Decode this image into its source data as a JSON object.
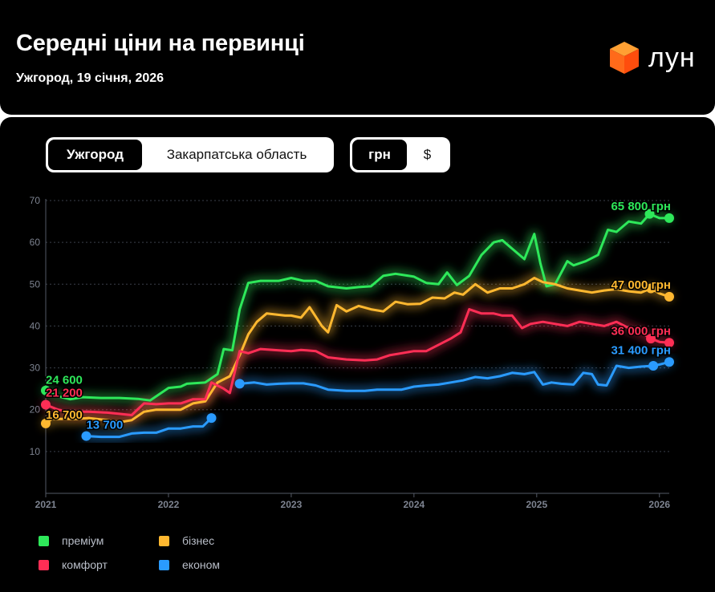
{
  "header": {
    "title": "Середні ціни на первинці",
    "subtitle": "Ужгород, 19 січня, 2026",
    "logo_text": "лун"
  },
  "controls": {
    "region_tabs": [
      {
        "label": "Ужгород",
        "active": true
      },
      {
        "label": "Закарпатська область",
        "active": false
      }
    ],
    "currency_tabs": [
      {
        "label": "грн",
        "active": true
      },
      {
        "label": "$",
        "active": false
      }
    ]
  },
  "colors": {
    "premium": "#2ee85a",
    "business": "#ffb830",
    "comfort": "#ff2e55",
    "econom": "#2a9bff",
    "grid": "#3a3f4a",
    "axis_text": "#7d8390"
  },
  "chart_data": {
    "type": "line",
    "title": "Середні ціни на первинці",
    "xlabel": "",
    "ylabel": "",
    "xlim": [
      2021.0,
      2026.08
    ],
    "ylim": [
      0,
      70
    ],
    "y_ticks": [
      10,
      20,
      30,
      40,
      50,
      60,
      70
    ],
    "x_ticks": [
      {
        "value": 2021.0,
        "label": "2021"
      },
      {
        "value": 2022.0,
        "label": "2022"
      },
      {
        "value": 2023.0,
        "label": "2023"
      },
      {
        "value": 2024.0,
        "label": "2024"
      },
      {
        "value": 2025.0,
        "label": "2025"
      },
      {
        "value": 2026.0,
        "label": "2026"
      }
    ],
    "grid": "horizontal dotted",
    "legend": "bottom-left",
    "series": [
      {
        "key": "premium",
        "name": "преміум",
        "start_label": "24 600",
        "end_label": "65 800 грн",
        "points": [
          [
            2021.0,
            24.6
          ],
          [
            2021.1,
            23.2
          ],
          [
            2021.2,
            22.5
          ],
          [
            2021.3,
            23.0
          ],
          [
            2021.45,
            22.8
          ],
          [
            2021.6,
            22.8
          ],
          [
            2021.75,
            22.6
          ],
          [
            2021.85,
            22.2
          ],
          [
            2022.0,
            25.2
          ],
          [
            2022.1,
            25.5
          ],
          [
            2022.15,
            26.2
          ],
          [
            2022.3,
            26.5
          ],
          [
            2022.4,
            28.5
          ],
          [
            2022.45,
            34.5
          ],
          [
            2022.52,
            34.2
          ],
          [
            2022.58,
            44.0
          ],
          [
            2022.65,
            50.3
          ],
          [
            2022.75,
            50.8
          ],
          [
            2022.9,
            50.8
          ],
          [
            2023.0,
            51.5
          ],
          [
            2023.1,
            50.8
          ],
          [
            2023.2,
            50.8
          ],
          [
            2023.3,
            49.5
          ],
          [
            2023.45,
            49.0
          ],
          [
            2023.55,
            49.3
          ],
          [
            2023.65,
            49.5
          ],
          [
            2023.75,
            52.0
          ],
          [
            2023.85,
            52.5
          ],
          [
            2024.0,
            51.8
          ],
          [
            2024.1,
            50.3
          ],
          [
            2024.2,
            50.0
          ],
          [
            2024.27,
            52.8
          ],
          [
            2024.35,
            49.8
          ],
          [
            2024.45,
            52.0
          ],
          [
            2024.55,
            57.0
          ],
          [
            2024.65,
            60.0
          ],
          [
            2024.72,
            60.5
          ],
          [
            2024.8,
            58.5
          ],
          [
            2024.9,
            56.0
          ],
          [
            2024.98,
            62.0
          ],
          [
            2025.03,
            55.0
          ],
          [
            2025.08,
            49.5
          ],
          [
            2025.15,
            50.0
          ],
          [
            2025.25,
            55.5
          ],
          [
            2025.3,
            54.5
          ],
          [
            2025.4,
            55.5
          ],
          [
            2025.5,
            57.0
          ],
          [
            2025.58,
            63.0
          ],
          [
            2025.65,
            62.5
          ],
          [
            2025.75,
            65.0
          ],
          [
            2025.85,
            64.5
          ],
          [
            2025.92,
            66.8
          ],
          [
            2026.0,
            65.8
          ],
          [
            2026.08,
            65.8
          ]
        ]
      },
      {
        "key": "business",
        "name": "бізнес",
        "start_label": "16 700",
        "end_label": "47 000 грн",
        "points": [
          [
            2021.0,
            16.7
          ],
          [
            2021.05,
            17.8
          ],
          [
            2021.15,
            17.8
          ],
          [
            2021.25,
            17.8
          ],
          [
            2021.35,
            18.0
          ],
          [
            2021.5,
            17.5
          ],
          [
            2021.6,
            17.0
          ],
          [
            2021.7,
            17.5
          ],
          [
            2021.8,
            19.5
          ],
          [
            2021.9,
            20.0
          ],
          [
            2022.0,
            20.0
          ],
          [
            2022.1,
            20.0
          ],
          [
            2022.2,
            21.5
          ],
          [
            2022.3,
            22.0
          ],
          [
            2022.4,
            26.5
          ],
          [
            2022.5,
            28.0
          ],
          [
            2022.58,
            33.0
          ],
          [
            2022.65,
            38.0
          ],
          [
            2022.72,
            41.0
          ],
          [
            2022.8,
            43.0
          ],
          [
            2022.95,
            42.5
          ],
          [
            2023.0,
            42.5
          ],
          [
            2023.08,
            42.0
          ],
          [
            2023.15,
            44.5
          ],
          [
            2023.25,
            40.0
          ],
          [
            2023.3,
            38.5
          ],
          [
            2023.37,
            45.0
          ],
          [
            2023.45,
            43.5
          ],
          [
            2023.55,
            44.8
          ],
          [
            2023.65,
            44.0
          ],
          [
            2023.75,
            43.5
          ],
          [
            2023.85,
            45.8
          ],
          [
            2023.95,
            45.2
          ],
          [
            2024.05,
            45.3
          ],
          [
            2024.15,
            46.8
          ],
          [
            2024.25,
            46.6
          ],
          [
            2024.33,
            48.0
          ],
          [
            2024.4,
            47.5
          ],
          [
            2024.5,
            50.0
          ],
          [
            2024.6,
            48.0
          ],
          [
            2024.7,
            49.0
          ],
          [
            2024.8,
            49.0
          ],
          [
            2024.9,
            50.0
          ],
          [
            2024.98,
            51.5
          ],
          [
            2025.05,
            50.5
          ],
          [
            2025.15,
            50.0
          ],
          [
            2025.25,
            49.0
          ],
          [
            2025.35,
            48.5
          ],
          [
            2025.45,
            48.0
          ],
          [
            2025.55,
            48.5
          ],
          [
            2025.65,
            48.8
          ],
          [
            2025.75,
            48.3
          ],
          [
            2025.85,
            48.0
          ],
          [
            2025.93,
            49.0
          ],
          [
            2026.0,
            47.8
          ],
          [
            2026.08,
            47.0
          ]
        ]
      },
      {
        "key": "comfort",
        "name": "комфорт",
        "start_label": "21 200",
        "end_label": "36 000 грн",
        "points": [
          [
            2021.0,
            21.2
          ],
          [
            2021.1,
            20.0
          ],
          [
            2021.2,
            19.5
          ],
          [
            2021.35,
            19.5
          ],
          [
            2021.5,
            19.3
          ],
          [
            2021.6,
            19.0
          ],
          [
            2021.7,
            18.7
          ],
          [
            2021.8,
            21.5
          ],
          [
            2021.9,
            21.3
          ],
          [
            2022.0,
            21.5
          ],
          [
            2022.1,
            21.5
          ],
          [
            2022.2,
            22.5
          ],
          [
            2022.3,
            22.5
          ],
          [
            2022.35,
            26.5
          ],
          [
            2022.45,
            25.0
          ],
          [
            2022.5,
            24.0
          ],
          [
            2022.58,
            34.0
          ],
          [
            2022.65,
            33.5
          ],
          [
            2022.75,
            34.5
          ],
          [
            2022.9,
            34.2
          ],
          [
            2023.0,
            34.0
          ],
          [
            2023.08,
            34.3
          ],
          [
            2023.2,
            34.0
          ],
          [
            2023.3,
            32.5
          ],
          [
            2023.45,
            32.0
          ],
          [
            2023.6,
            31.8
          ],
          [
            2023.7,
            32.0
          ],
          [
            2023.8,
            33.0
          ],
          [
            2023.9,
            33.5
          ],
          [
            2024.0,
            34.0
          ],
          [
            2024.1,
            34.0
          ],
          [
            2024.2,
            35.5
          ],
          [
            2024.3,
            37.0
          ],
          [
            2024.38,
            38.5
          ],
          [
            2024.45,
            44.0
          ],
          [
            2024.55,
            43.0
          ],
          [
            2024.65,
            43.0
          ],
          [
            2024.72,
            42.5
          ],
          [
            2024.8,
            42.5
          ],
          [
            2024.88,
            39.5
          ],
          [
            2024.95,
            40.5
          ],
          [
            2025.05,
            41.0
          ],
          [
            2025.15,
            40.5
          ],
          [
            2025.25,
            40.0
          ],
          [
            2025.35,
            41.0
          ],
          [
            2025.45,
            40.5
          ],
          [
            2025.55,
            40.0
          ],
          [
            2025.65,
            41.0
          ],
          [
            2025.75,
            39.5
          ],
          [
            2025.85,
            38.5
          ],
          [
            2025.93,
            37.0
          ],
          [
            2026.0,
            36.2
          ],
          [
            2026.08,
            36.0
          ]
        ]
      },
      {
        "key": "econom",
        "name": "економ",
        "start_label": "13 700",
        "end_label": "31 400 грн",
        "segments": [
          [
            [
              2021.33,
              13.7
            ],
            [
              2021.45,
              13.5
            ],
            [
              2021.6,
              13.5
            ],
            [
              2021.7,
              14.3
            ],
            [
              2021.8,
              14.5
            ],
            [
              2021.9,
              14.5
            ],
            [
              2022.0,
              15.5
            ],
            [
              2022.1,
              15.5
            ],
            [
              2022.2,
              16.0
            ],
            [
              2022.28,
              16.0
            ],
            [
              2022.35,
              18.0
            ]
          ],
          [
            [
              2022.58,
              26.2
            ],
            [
              2022.7,
              26.5
            ],
            [
              2022.8,
              26.0
            ],
            [
              2022.9,
              26.2
            ],
            [
              2023.0,
              26.3
            ],
            [
              2023.1,
              26.3
            ],
            [
              2023.2,
              25.8
            ],
            [
              2023.3,
              24.8
            ],
            [
              2023.45,
              24.5
            ],
            [
              2023.6,
              24.5
            ],
            [
              2023.7,
              24.8
            ],
            [
              2023.8,
              24.8
            ],
            [
              2023.9,
              24.8
            ],
            [
              2024.0,
              25.5
            ],
            [
              2024.1,
              25.8
            ],
            [
              2024.2,
              26.0
            ],
            [
              2024.3,
              26.5
            ],
            [
              2024.4,
              27.0
            ],
            [
              2024.5,
              27.8
            ],
            [
              2024.6,
              27.5
            ],
            [
              2024.7,
              28.0
            ],
            [
              2024.8,
              28.8
            ],
            [
              2024.9,
              28.5
            ],
            [
              2024.98,
              29.0
            ],
            [
              2025.05,
              26.0
            ],
            [
              2025.12,
              26.5
            ],
            [
              2025.2,
              26.2
            ],
            [
              2025.3,
              26.0
            ],
            [
              2025.38,
              28.8
            ],
            [
              2025.45,
              28.5
            ],
            [
              2025.5,
              26.0
            ],
            [
              2025.57,
              25.8
            ],
            [
              2025.65,
              30.5
            ],
            [
              2025.75,
              30.0
            ],
            [
              2025.85,
              30.3
            ],
            [
              2025.95,
              30.5
            ],
            [
              2026.0,
              30.8
            ],
            [
              2026.08,
              31.4
            ]
          ]
        ]
      }
    ]
  }
}
